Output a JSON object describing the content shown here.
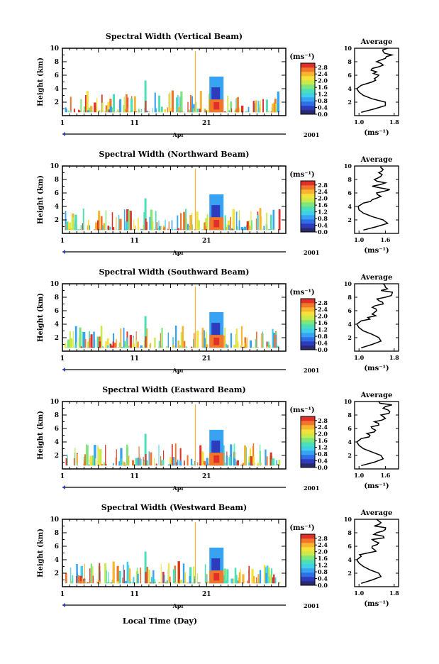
{
  "colors": {
    "scale": [
      "#2a2a6e",
      "#2e3bbd",
      "#2f6fe6",
      "#37a3f2",
      "#3fd0e8",
      "#4be0b8",
      "#7ee67a",
      "#c8ea4a",
      "#f4e23a",
      "#f9b432",
      "#f2762a",
      "#e0302a"
    ],
    "axis": "#000000"
  },
  "footer": {
    "xlabel": "Local Time (Day)"
  },
  "chart_data": [
    {
      "type": "heatmap",
      "title": "Spectral Width (Vertical Beam)",
      "ylabel": "Height (km)",
      "ylim": [
        0,
        10
      ],
      "yticks": [
        "2",
        "4",
        "6",
        "8",
        "10"
      ],
      "xticks": [
        "1",
        "11",
        "21"
      ],
      "month": "Apr",
      "year": "2001",
      "colorbar_unit": "(ms⁻¹)",
      "colorbar_ticks": [
        "0.0",
        "0.4",
        "0.8",
        "1.2",
        "1.6",
        "2.0",
        "2.4",
        "2.8"
      ],
      "average_title": "Average",
      "average_xticks": [
        "1.0",
        "1.8"
      ],
      "average_xlabel": "(ms⁻¹)",
      "average_ylim": [
        0,
        10
      ],
      "average_xlim": [
        0.9,
        1.9
      ],
      "average_profile": {
        "height": [
          0.5,
          1.0,
          1.5,
          2.0,
          2.5,
          3.0,
          3.5,
          4.0,
          4.5,
          5.0,
          5.5,
          6.0,
          6.5,
          7.0,
          7.5,
          8.0,
          8.5,
          9.0,
          9.5,
          10.0
        ],
        "width": [
          1.05,
          1.35,
          1.6,
          1.6,
          1.3,
          1.1,
          1.0,
          0.95,
          1.05,
          1.3,
          1.35,
          1.45,
          1.4,
          1.3,
          1.55,
          1.4,
          1.6,
          1.75,
          1.55,
          1.65
        ]
      }
    },
    {
      "type": "heatmap",
      "title": "Spectral Width (Northward Beam)",
      "ylabel": "Height (km)",
      "ylim": [
        0,
        10
      ],
      "yticks": [
        "2",
        "4",
        "6",
        "8",
        "10"
      ],
      "xticks": [
        "1",
        "11",
        "21"
      ],
      "month": "Apr",
      "year": "2001",
      "colorbar_unit": "(ms⁻¹)",
      "colorbar_ticks": [
        "0.0",
        "0.4",
        "0.8",
        "1.2",
        "1.6",
        "2.0",
        "2.4",
        "2.8"
      ],
      "average_title": "Average",
      "average_xticks": [
        "1.0",
        "1.6"
      ],
      "average_xlabel": "(ms⁻¹)",
      "average_ylim": [
        0,
        10
      ],
      "average_xlim": [
        0.9,
        1.9
      ],
      "average_profile": {
        "height": [
          0.5,
          1.0,
          1.5,
          2.0,
          2.5,
          3.0,
          3.5,
          4.0,
          4.5,
          5.0,
          5.5,
          6.0,
          6.5,
          7.0,
          7.5,
          8.0,
          8.5,
          9.0,
          9.5,
          10.0
        ],
        "width": [
          1.1,
          1.4,
          1.65,
          1.55,
          1.3,
          1.1,
          1.0,
          0.98,
          1.1,
          1.3,
          1.5,
          1.4,
          1.7,
          1.3,
          1.6,
          1.35,
          1.5,
          1.45,
          1.55,
          1.5
        ]
      }
    },
    {
      "type": "heatmap",
      "title": "Spectral Width (Southward Beam)",
      "ylabel": "Height (km)",
      "ylim": [
        0,
        10
      ],
      "yticks": [
        "2",
        "4",
        "6",
        "8",
        "10"
      ],
      "xticks": [
        "1",
        "11",
        "21"
      ],
      "month": "Apr",
      "year": "2001",
      "colorbar_unit": "(ms⁻¹)",
      "colorbar_ticks": [
        "0.0",
        "0.4",
        "0.8",
        "1.2",
        "1.6",
        "2.0",
        "2.4",
        "2.8"
      ],
      "average_title": "Average",
      "average_xticks": [
        "1.0",
        "1.8"
      ],
      "average_xlabel": "(ms⁻¹)",
      "average_ylim": [
        0,
        10
      ],
      "average_xlim": [
        0.9,
        1.9
      ],
      "average_profile": {
        "height": [
          0.5,
          1.0,
          1.5,
          2.0,
          2.5,
          3.0,
          3.5,
          4.0,
          4.5,
          5.0,
          5.5,
          6.0,
          6.5,
          7.0,
          7.5,
          8.0,
          8.5,
          9.0,
          9.5,
          10.0
        ],
        "width": [
          1.05,
          1.3,
          1.5,
          1.45,
          1.3,
          1.1,
          1.0,
          0.95,
          1.05,
          1.2,
          1.3,
          1.4,
          1.3,
          1.55,
          1.45,
          1.6,
          1.75,
          1.5,
          1.6,
          1.55
        ]
      }
    },
    {
      "type": "heatmap",
      "title": "Spectral Width (Eastward Beam)",
      "ylabel": "Height (km)",
      "ylim": [
        0,
        10
      ],
      "yticks": [
        "2",
        "4",
        "6",
        "8",
        "10"
      ],
      "xticks": [
        "1",
        "11",
        "21"
      ],
      "month": "Apr",
      "year": "2001",
      "colorbar_unit": "(ms⁻¹)",
      "colorbar_ticks": [
        "0.0",
        "0.4",
        "0.8",
        "1.2",
        "1.6",
        "2.0",
        "2.4",
        "2.8"
      ],
      "average_title": "Average",
      "average_xticks": [
        "1.0",
        "1.6"
      ],
      "average_xlabel": "(ms⁻¹)",
      "average_ylim": [
        0,
        10
      ],
      "average_xlim": [
        0.9,
        1.9
      ],
      "average_profile": {
        "height": [
          0.5,
          1.0,
          1.5,
          2.0,
          2.5,
          3.0,
          3.5,
          4.0,
          4.5,
          5.0,
          5.5,
          6.0,
          6.5,
          7.0,
          7.5,
          8.0,
          8.5,
          9.0,
          9.5,
          10.0
        ],
        "width": [
          1.05,
          1.35,
          1.55,
          1.5,
          1.3,
          1.1,
          1.0,
          0.95,
          1.05,
          1.25,
          1.35,
          1.3,
          1.45,
          1.35,
          1.6,
          1.5,
          1.7,
          1.55,
          1.75,
          1.45
        ]
      }
    },
    {
      "type": "heatmap",
      "title": "Spectral Width (Westward Beam)",
      "ylabel": "Height (km)",
      "ylim": [
        0,
        10
      ],
      "yticks": [
        "2",
        "4",
        "6",
        "8",
        "10"
      ],
      "xticks": [
        "1",
        "11",
        "21"
      ],
      "month": "Apr",
      "year": "2001",
      "colorbar_unit": "(ms⁻¹)",
      "colorbar_ticks": [
        "0.0",
        "0.4",
        "0.8",
        "1.2",
        "1.6",
        "2.0",
        "2.4",
        "2.8"
      ],
      "average_title": "Average",
      "average_xticks": [
        "1.0",
        "1.8"
      ],
      "average_xlabel": "(ms⁻¹)",
      "average_ylim": [
        0,
        10
      ],
      "average_xlim": [
        0.9,
        1.9
      ],
      "average_profile": {
        "height": [
          0.5,
          1.0,
          1.5,
          2.0,
          2.5,
          3.0,
          3.5,
          4.0,
          4.5,
          5.0,
          5.5,
          6.0,
          6.5,
          7.0,
          7.5,
          8.0,
          8.5,
          9.0,
          9.5,
          10.0
        ],
        "width": [
          1.05,
          1.3,
          1.5,
          1.45,
          1.25,
          1.1,
          1.0,
          0.95,
          1.05,
          1.2,
          1.35,
          1.3,
          1.45,
          1.3,
          1.55,
          1.4,
          1.6,
          1.35,
          1.5,
          1.4
        ]
      }
    }
  ]
}
